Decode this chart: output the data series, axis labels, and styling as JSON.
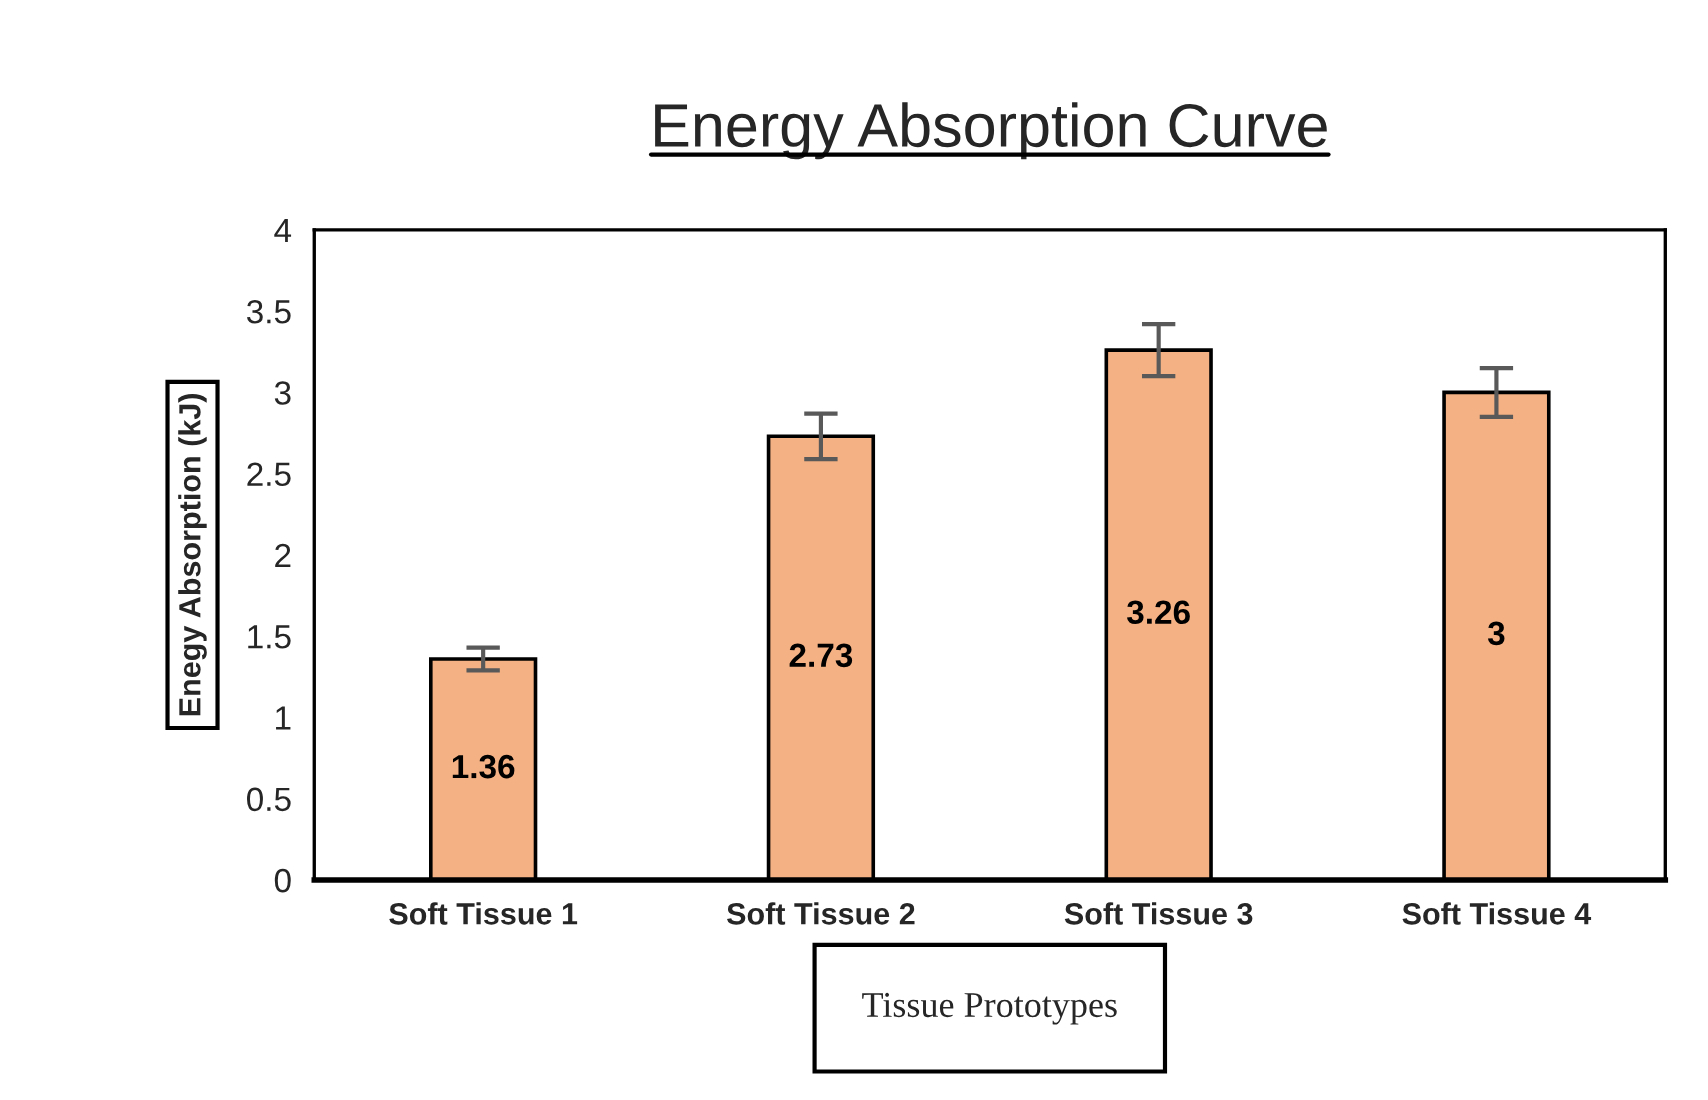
{
  "chart_data": {
    "type": "bar",
    "title": "Energy Absorption Curve",
    "xlabel": "Tissue Prototypes",
    "ylabel": "Enegy Absorption (kJ)",
    "categories": [
      "Soft Tissue 1",
      "Soft Tissue 2",
      "Soft Tissue 3",
      "Soft Tissue 4"
    ],
    "values": [
      1.36,
      2.73,
      3.26,
      3
    ],
    "errors": [
      0.07,
      0.14,
      0.16,
      0.15
    ],
    "color": "#f4b183",
    "ylim": [
      0,
      4
    ],
    "yticks": [
      0,
      0.5,
      1,
      1.5,
      2,
      2.5,
      3,
      3.5,
      4
    ],
    "grid": false,
    "data_labels": true
  }
}
